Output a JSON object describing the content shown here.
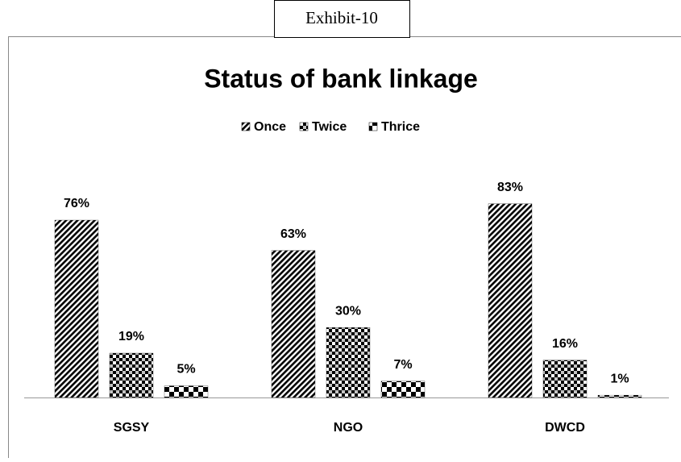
{
  "exhibit": "Exhibit-10",
  "chart_data": {
    "type": "bar",
    "title": "Status of bank linkage",
    "categories": [
      "SGSY",
      "NGO",
      "DWCD"
    ],
    "series": [
      {
        "name": "Once",
        "color": "#000000",
        "values": [
          76,
          63,
          83
        ],
        "value_labels": [
          "76%",
          "63%",
          "83%"
        ]
      },
      {
        "name": "Twice",
        "color": "#000000",
        "values": [
          19,
          30,
          16
        ],
        "value_labels": [
          "19%",
          "30%",
          "16%"
        ]
      },
      {
        "name": "Thrice",
        "color": "#000000",
        "values": [
          5,
          7,
          1
        ],
        "value_labels": [
          "5%",
          "7%",
          "1%"
        ]
      }
    ],
    "ylim": [
      0,
      90
    ],
    "legend": "top"
  }
}
